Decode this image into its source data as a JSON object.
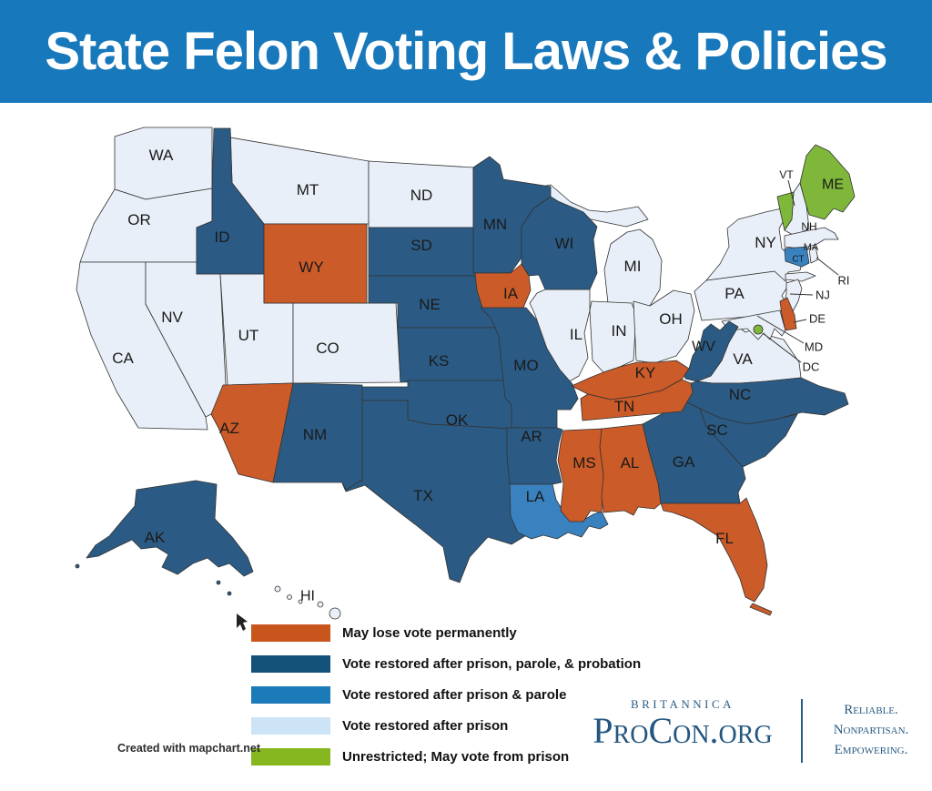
{
  "header": {
    "title": "State Felon Voting Laws & Policies",
    "bg_color": "#1878bc",
    "text_color": "#ffffff"
  },
  "legend": {
    "items": [
      {
        "key": "permanent",
        "label": "May lose vote permanently",
        "color": "#c8551c",
        "map_color": "#cb5b28"
      },
      {
        "key": "probation",
        "label": "Vote restored after prison, parole, & probation",
        "color": "#15527a",
        "map_color": "#2b5b84"
      },
      {
        "key": "parole",
        "label": "Vote restored after prison & parole",
        "color": "#1b7ab8",
        "map_color": "#3a82bf"
      },
      {
        "key": "prison",
        "label": "Vote restored after prison",
        "color": "#cce4f5",
        "map_color": "#e9eff8"
      },
      {
        "key": "unrestricted",
        "label": "Unrestricted; May vote from prison",
        "color": "#86b71f",
        "map_color": "#7eb73a"
      }
    ]
  },
  "attribution": "Created with mapchart.net",
  "logo": {
    "brand": "Britannica",
    "name": "ProCon.org",
    "tagline": [
      "Reliable.",
      "Nonpartisan.",
      "Empowering."
    ],
    "color": "#2a5c84"
  },
  "map": {
    "states": [
      {
        "abbr": "WA",
        "category": "prison"
      },
      {
        "abbr": "OR",
        "category": "prison"
      },
      {
        "abbr": "CA",
        "category": "prison"
      },
      {
        "abbr": "NV",
        "category": "prison"
      },
      {
        "abbr": "UT",
        "category": "prison"
      },
      {
        "abbr": "CO",
        "category": "prison"
      },
      {
        "abbr": "MT",
        "category": "prison"
      },
      {
        "abbr": "ND",
        "category": "prison"
      },
      {
        "abbr": "MI",
        "category": "prison"
      },
      {
        "abbr": "IL",
        "category": "prison"
      },
      {
        "abbr": "IN",
        "category": "prison"
      },
      {
        "abbr": "OH",
        "category": "prison"
      },
      {
        "abbr": "PA",
        "category": "prison"
      },
      {
        "abbr": "NY",
        "category": "prison"
      },
      {
        "abbr": "VA",
        "category": "prison"
      },
      {
        "abbr": "NJ",
        "category": "prison"
      },
      {
        "abbr": "NH",
        "category": "prison"
      },
      {
        "abbr": "MA",
        "category": "prison"
      },
      {
        "abbr": "RI",
        "category": "prison"
      },
      {
        "abbr": "MD",
        "category": "prison"
      },
      {
        "abbr": "HI",
        "category": "prison"
      },
      {
        "abbr": "ID",
        "category": "probation"
      },
      {
        "abbr": "SD",
        "category": "probation"
      },
      {
        "abbr": "NE",
        "category": "probation"
      },
      {
        "abbr": "KS",
        "category": "probation"
      },
      {
        "abbr": "MN",
        "category": "probation"
      },
      {
        "abbr": "WI",
        "category": "probation"
      },
      {
        "abbr": "MO",
        "category": "probation"
      },
      {
        "abbr": "OK",
        "category": "probation"
      },
      {
        "abbr": "TX",
        "category": "probation"
      },
      {
        "abbr": "NM",
        "category": "probation"
      },
      {
        "abbr": "AR",
        "category": "probation"
      },
      {
        "abbr": "AK",
        "category": "probation"
      },
      {
        "abbr": "WV",
        "category": "probation"
      },
      {
        "abbr": "NC",
        "category": "probation"
      },
      {
        "abbr": "SC",
        "category": "probation"
      },
      {
        "abbr": "GA",
        "category": "probation"
      },
      {
        "abbr": "LA",
        "category": "parole"
      },
      {
        "abbr": "CT",
        "category": "parole"
      },
      {
        "abbr": "WY",
        "category": "permanent"
      },
      {
        "abbr": "AZ",
        "category": "permanent"
      },
      {
        "abbr": "IA",
        "category": "permanent"
      },
      {
        "abbr": "KY",
        "category": "permanent"
      },
      {
        "abbr": "TN",
        "category": "permanent"
      },
      {
        "abbr": "MS",
        "category": "permanent"
      },
      {
        "abbr": "AL",
        "category": "permanent"
      },
      {
        "abbr": "FL",
        "category": "permanent"
      },
      {
        "abbr": "DE",
        "category": "permanent"
      },
      {
        "abbr": "ME",
        "category": "unrestricted"
      },
      {
        "abbr": "VT",
        "category": "unrestricted"
      },
      {
        "abbr": "DC",
        "category": "unrestricted"
      }
    ]
  }
}
